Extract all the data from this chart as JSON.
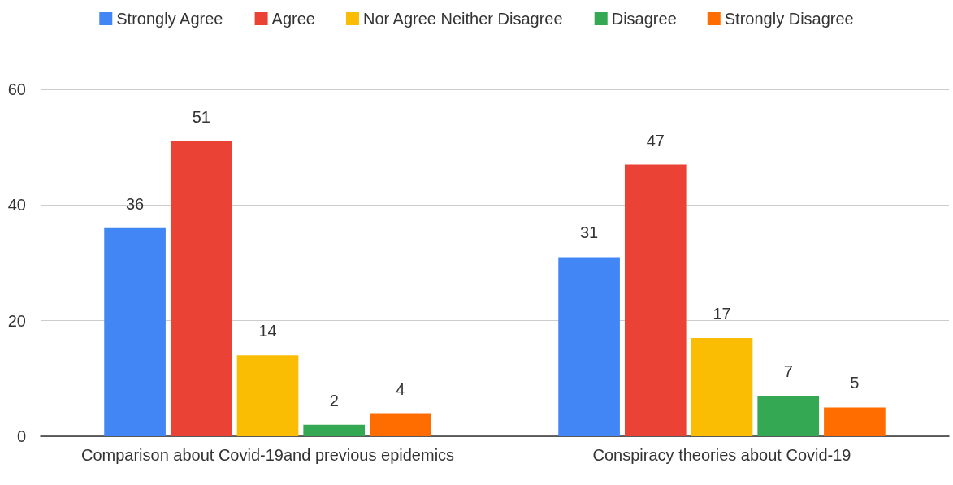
{
  "chart_data": {
    "type": "bar",
    "categories": [
      "Comparison about Covid-19and previous epidemics",
      "Conspiracy theories about Covid-19"
    ],
    "series": [
      {
        "name": "Strongly Agree",
        "color": "#4285f4",
        "values": [
          36,
          31
        ]
      },
      {
        "name": "Agree",
        "color": "#ea4335",
        "values": [
          51,
          47
        ]
      },
      {
        "name": "Nor Agree Neither Disagree",
        "color": "#fbbc04",
        "values": [
          14,
          17
        ]
      },
      {
        "name": "Disagree",
        "color": "#34a853",
        "values": [
          2,
          7
        ]
      },
      {
        "name": "Strongly Disagree",
        "color": "#ff6d01",
        "values": [
          4,
          5
        ]
      }
    ],
    "ylim": [
      0,
      60
    ],
    "yticks": [
      0,
      20,
      40,
      60
    ],
    "grid": "y",
    "legend": "top",
    "data_labels": true
  }
}
